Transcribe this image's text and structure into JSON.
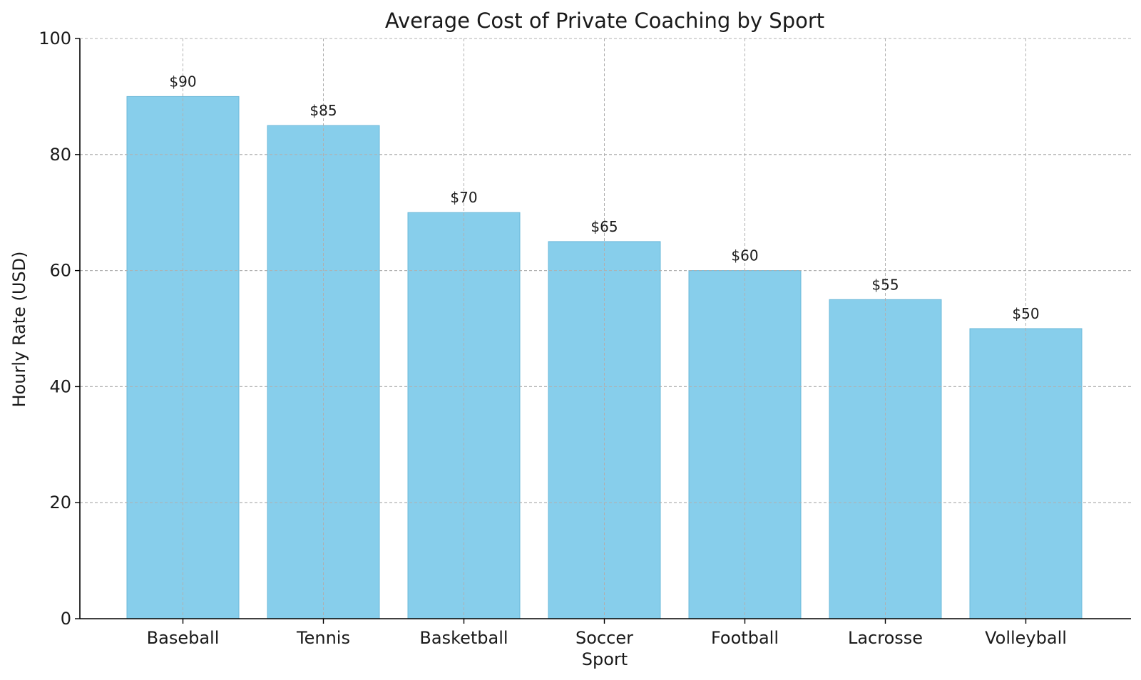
{
  "chart_data": {
    "type": "bar",
    "title": "Average Cost of Private Coaching by Sport",
    "xlabel": "Sport",
    "ylabel": "Hourly Rate (USD)",
    "categories": [
      "Baseball",
      "Tennis",
      "Basketball",
      "Soccer",
      "Football",
      "Lacrosse",
      "Volleyball"
    ],
    "values": [
      90,
      85,
      70,
      65,
      60,
      55,
      50
    ],
    "data_labels": [
      "$90",
      "$85",
      "$70",
      "$65",
      "$60",
      "$55",
      "$50"
    ],
    "ylim": [
      0,
      100
    ],
    "yticks": [
      0,
      20,
      40,
      60,
      80,
      100
    ],
    "grid": true,
    "colors": {
      "bar_fill": "#87ceeb",
      "bar_edge": "#6bb8d9",
      "grid": "#b0b0b0",
      "axis": "#000000"
    }
  }
}
